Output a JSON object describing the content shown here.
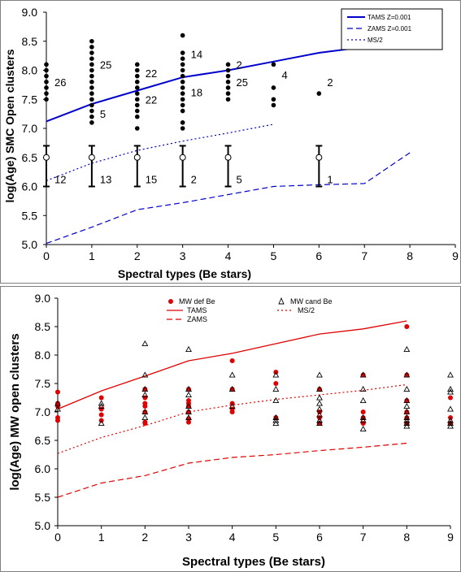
{
  "chart_data": [
    {
      "type": "scatter",
      "title": "",
      "xlabel": "Spectral types (Be stars)",
      "ylabel": "log(Age) SMC Open clusters",
      "xlim": [
        0,
        9
      ],
      "ylim": [
        5.0,
        9.0
      ],
      "xticks": [
        "0",
        "1",
        "2",
        "3",
        "4",
        "5",
        "6",
        "7",
        "8",
        "9"
      ],
      "yticks": [
        "5.0",
        "5.5",
        "6.0",
        "6.5",
        "7.0",
        "7.5",
        "8.0",
        "8.5",
        "9.0"
      ],
      "grid": false,
      "legend_position": "top-right",
      "series": [
        {
          "name": "TAMS Z=0.001",
          "style": "solid",
          "color": "#0000cc",
          "x": [
            0,
            1,
            2,
            3,
            4,
            5,
            6,
            7,
            8
          ],
          "y": [
            7.12,
            7.42,
            7.65,
            7.88,
            8.0,
            8.15,
            8.3,
            8.4,
            8.52
          ]
        },
        {
          "name": "ZAMS Z=0.001",
          "style": "dashed",
          "color": "#0000cc",
          "x": [
            0,
            1,
            2,
            3,
            4,
            5,
            6,
            7,
            8
          ],
          "y": [
            5.02,
            5.3,
            5.6,
            5.72,
            5.86,
            6.0,
            6.03,
            6.05,
            6.58
          ]
        },
        {
          "name": "MS/2",
          "style": "dotted",
          "color": "#0000cc",
          "x": [
            0,
            1,
            2,
            3,
            4,
            5
          ],
          "y": [
            6.1,
            6.4,
            6.62,
            6.78,
            6.92,
            7.07
          ]
        }
      ],
      "points": [
        {
          "x": 0,
          "y": [
            7.5,
            7.6,
            7.7,
            7.8,
            7.9,
            8.0,
            8.1
          ]
        },
        {
          "x": 1,
          "y": [
            7.1,
            7.2,
            7.3,
            7.4,
            7.5,
            7.6,
            7.7,
            7.8,
            7.9,
            8.0,
            8.1,
            8.2,
            8.3,
            8.4,
            8.5
          ]
        },
        {
          "x": 2,
          "y": [
            7.0,
            7.2,
            7.3,
            7.4,
            7.5,
            7.6,
            7.7,
            7.8,
            7.9,
            8.0,
            8.1
          ]
        },
        {
          "x": 3,
          "y": [
            7.0,
            7.1,
            7.3,
            7.4,
            7.5,
            7.6,
            7.7,
            7.8,
            7.9,
            8.0,
            8.1,
            8.2,
            8.3,
            8.6
          ]
        },
        {
          "x": 4,
          "y": [
            7.5,
            7.6,
            7.7,
            7.8,
            7.9,
            8.0,
            8.1
          ]
        },
        {
          "x": 5,
          "y": [
            7.4,
            7.5,
            7.7,
            8.1
          ]
        },
        {
          "x": 6,
          "y": [
            7.6
          ]
        }
      ],
      "count_labels": [
        {
          "x": 0,
          "y": 7.8,
          "text": "26"
        },
        {
          "x": 1,
          "y": 8.1,
          "text": "25"
        },
        {
          "x": 1,
          "y": 7.25,
          "text": "5"
        },
        {
          "x": 2,
          "y": 7.95,
          "text": "22"
        },
        {
          "x": 2,
          "y": 7.5,
          "text": "22"
        },
        {
          "x": 3,
          "y": 8.28,
          "text": "14"
        },
        {
          "x": 3,
          "y": 7.62,
          "text": "18"
        },
        {
          "x": 4,
          "y": 8.1,
          "text": "2"
        },
        {
          "x": 4,
          "y": 7.8,
          "text": "25"
        },
        {
          "x": 5,
          "y": 7.92,
          "text": "4"
        },
        {
          "x": 6,
          "y": 7.8,
          "text": "2"
        }
      ],
      "error_bars": [
        {
          "x": 0,
          "y": 6.5,
          "low": 6.0,
          "high": 6.7,
          "label": "12"
        },
        {
          "x": 1,
          "y": 6.5,
          "low": 6.0,
          "high": 6.7,
          "label": "13"
        },
        {
          "x": 2,
          "y": 6.5,
          "low": 6.0,
          "high": 6.7,
          "label": "15"
        },
        {
          "x": 3,
          "y": 6.5,
          "low": 6.0,
          "high": 6.7,
          "label": "2"
        },
        {
          "x": 4,
          "y": 6.5,
          "low": 6.0,
          "high": 6.7,
          "label": "5"
        },
        {
          "x": 6,
          "y": 6.5,
          "low": 6.0,
          "high": 6.7,
          "label": "1"
        }
      ]
    },
    {
      "type": "scatter",
      "title": "",
      "xlabel": "Spectral types (Be stars)",
      "ylabel": "log(Age) MW open clusters",
      "xlim": [
        0,
        9
      ],
      "ylim": [
        5.0,
        9.0
      ],
      "xticks": [
        "0",
        "1",
        "2",
        "3",
        "4",
        "5",
        "6",
        "7",
        "8",
        "9"
      ],
      "yticks": [
        "5.0",
        "5.5",
        "6.0",
        "6.5",
        "7.0",
        "7.5",
        "8.0",
        "8.5",
        "9.0"
      ],
      "grid": false,
      "legend_position": "top-center",
      "series": [
        {
          "name": "TAMS",
          "style": "solid",
          "color": "#e00000",
          "x": [
            0,
            1,
            2,
            3,
            4,
            5,
            6,
            7,
            8
          ],
          "y": [
            7.05,
            7.37,
            7.63,
            7.9,
            8.03,
            8.2,
            8.37,
            8.46,
            8.6
          ]
        },
        {
          "name": "MS/2",
          "style": "dotted",
          "color": "#e00000",
          "x": [
            0,
            1,
            2,
            3,
            4,
            5,
            6,
            7,
            8
          ],
          "y": [
            6.27,
            6.55,
            6.76,
            7.0,
            7.12,
            7.22,
            7.3,
            7.38,
            7.48
          ]
        },
        {
          "name": "ZAMS",
          "style": "dashed",
          "color": "#e00000",
          "x": [
            0,
            1,
            2,
            3,
            4,
            5,
            6,
            7,
            8
          ],
          "y": [
            5.5,
            5.75,
            5.88,
            6.1,
            6.2,
            6.25,
            6.32,
            6.38,
            6.45
          ]
        }
      ],
      "mw_def_be": {
        "name": "MW def Be",
        "color": "#e00000",
        "points": [
          {
            "x": 0,
            "y": [
              6.85,
              6.9,
              7.1,
              7.15,
              7.35
            ]
          },
          {
            "x": 1,
            "y": [
              6.85,
              6.95,
              7.05,
              7.25
            ]
          },
          {
            "x": 2,
            "y": [
              6.8,
              6.82,
              7.0,
              7.1,
              7.15,
              7.25,
              7.4
            ]
          },
          {
            "x": 3,
            "y": [
              6.82,
              6.88,
              7.0,
              7.1,
              7.15,
              7.2,
              7.4
            ]
          },
          {
            "x": 4,
            "y": [
              7.0,
              7.05,
              7.15,
              7.4,
              7.9
            ]
          },
          {
            "x": 5,
            "y": [
              6.9,
              7.5,
              7.7
            ]
          },
          {
            "x": 6,
            "y": [
              6.8,
              6.9,
              7.0,
              7.4
            ]
          },
          {
            "x": 7,
            "y": [
              6.8,
              6.9,
              7.0,
              7.65
            ]
          },
          {
            "x": 8,
            "y": [
              6.8,
              6.9,
              7.0,
              7.2,
              7.65,
              8.5
            ]
          },
          {
            "x": 9,
            "y": [
              6.8,
              6.9,
              7.25
            ]
          }
        ]
      },
      "mw_cand_be": {
        "name": "MW cand Be",
        "color": "#000000",
        "points": [
          {
            "x": 0,
            "y": [
              7.05,
              7.15
            ]
          },
          {
            "x": 1,
            "y": [
              6.8,
              7.1,
              7.15
            ]
          },
          {
            "x": 2,
            "y": [
              6.9,
              7.0,
              7.3,
              7.4,
              7.65,
              8.2
            ]
          },
          {
            "x": 3,
            "y": [
              6.9,
              7.0,
              7.1,
              7.3,
              7.4,
              8.1
            ]
          },
          {
            "x": 4,
            "y": [
              7.1,
              7.4,
              7.65
            ]
          },
          {
            "x": 5,
            "y": [
              6.8,
              6.85,
              6.9,
              7.2,
              7.4,
              7.65
            ]
          },
          {
            "x": 6,
            "y": [
              6.8,
              6.85,
              6.95,
              7.05,
              7.15,
              7.25,
              7.4,
              7.65
            ]
          },
          {
            "x": 7,
            "y": [
              6.7,
              6.85,
              6.9,
              7.2,
              7.4,
              7.65
            ]
          },
          {
            "x": 8,
            "y": [
              6.75,
              6.8,
              6.85,
              6.9,
              7.0,
              7.1,
              7.2,
              7.4,
              7.65,
              8.1
            ]
          },
          {
            "x": 9,
            "y": [
              6.75,
              6.8,
              6.85,
              7.05,
              7.35,
              7.4,
              7.65
            ]
          }
        ]
      }
    }
  ]
}
